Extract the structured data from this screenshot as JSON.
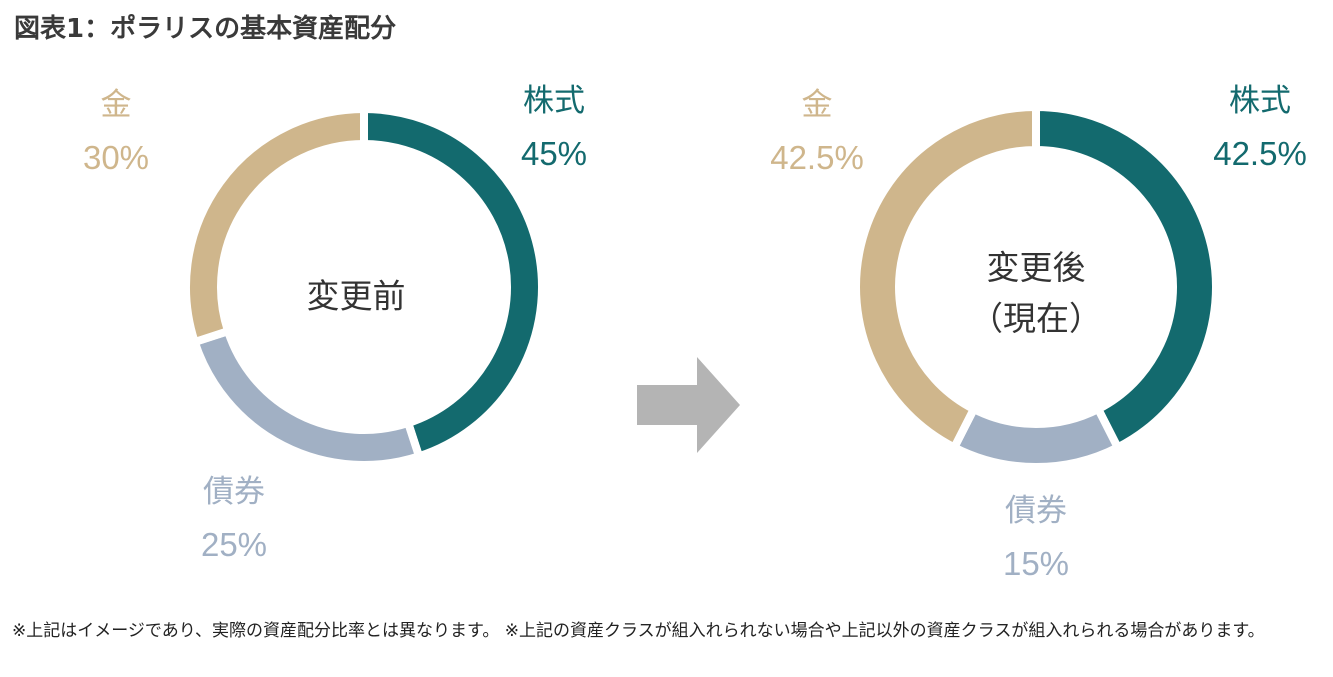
{
  "title": "図表1：ポラリスの基本資産配分",
  "colors": {
    "stocks": "#136a6e",
    "gold": "#cfb68c",
    "bonds": "#a1b0c4",
    "arrow": "#b4b4b4"
  },
  "chart_data": [
    {
      "type": "pie",
      "center_label": "変更前",
      "slices": [
        {
          "label": "株式",
          "value": 45,
          "value_label": "45%",
          "color": "#136a6e"
        },
        {
          "label": "債券",
          "value": 25,
          "value_label": "25%",
          "color": "#a1b0c4"
        },
        {
          "label": "金",
          "value": 30,
          "value_label": "30%",
          "color": "#cfb68c"
        }
      ]
    },
    {
      "type": "pie",
      "center_label": "変更後",
      "center_sublabel": "（現在）",
      "slices": [
        {
          "label": "株式",
          "value": 42.5,
          "value_label": "42.5%",
          "color": "#136a6e"
        },
        {
          "label": "債券",
          "value": 15,
          "value_label": "15%",
          "color": "#a1b0c4"
        },
        {
          "label": "金",
          "value": 42.5,
          "value_label": "42.5%",
          "color": "#cfb68c"
        }
      ]
    }
  ],
  "note": "※上記はイメージであり、実際の資産配分比率とは異なります。 ※上記の資産クラスが組入れられない場合や上記以外の資産クラスが組入れられる場合があります。"
}
